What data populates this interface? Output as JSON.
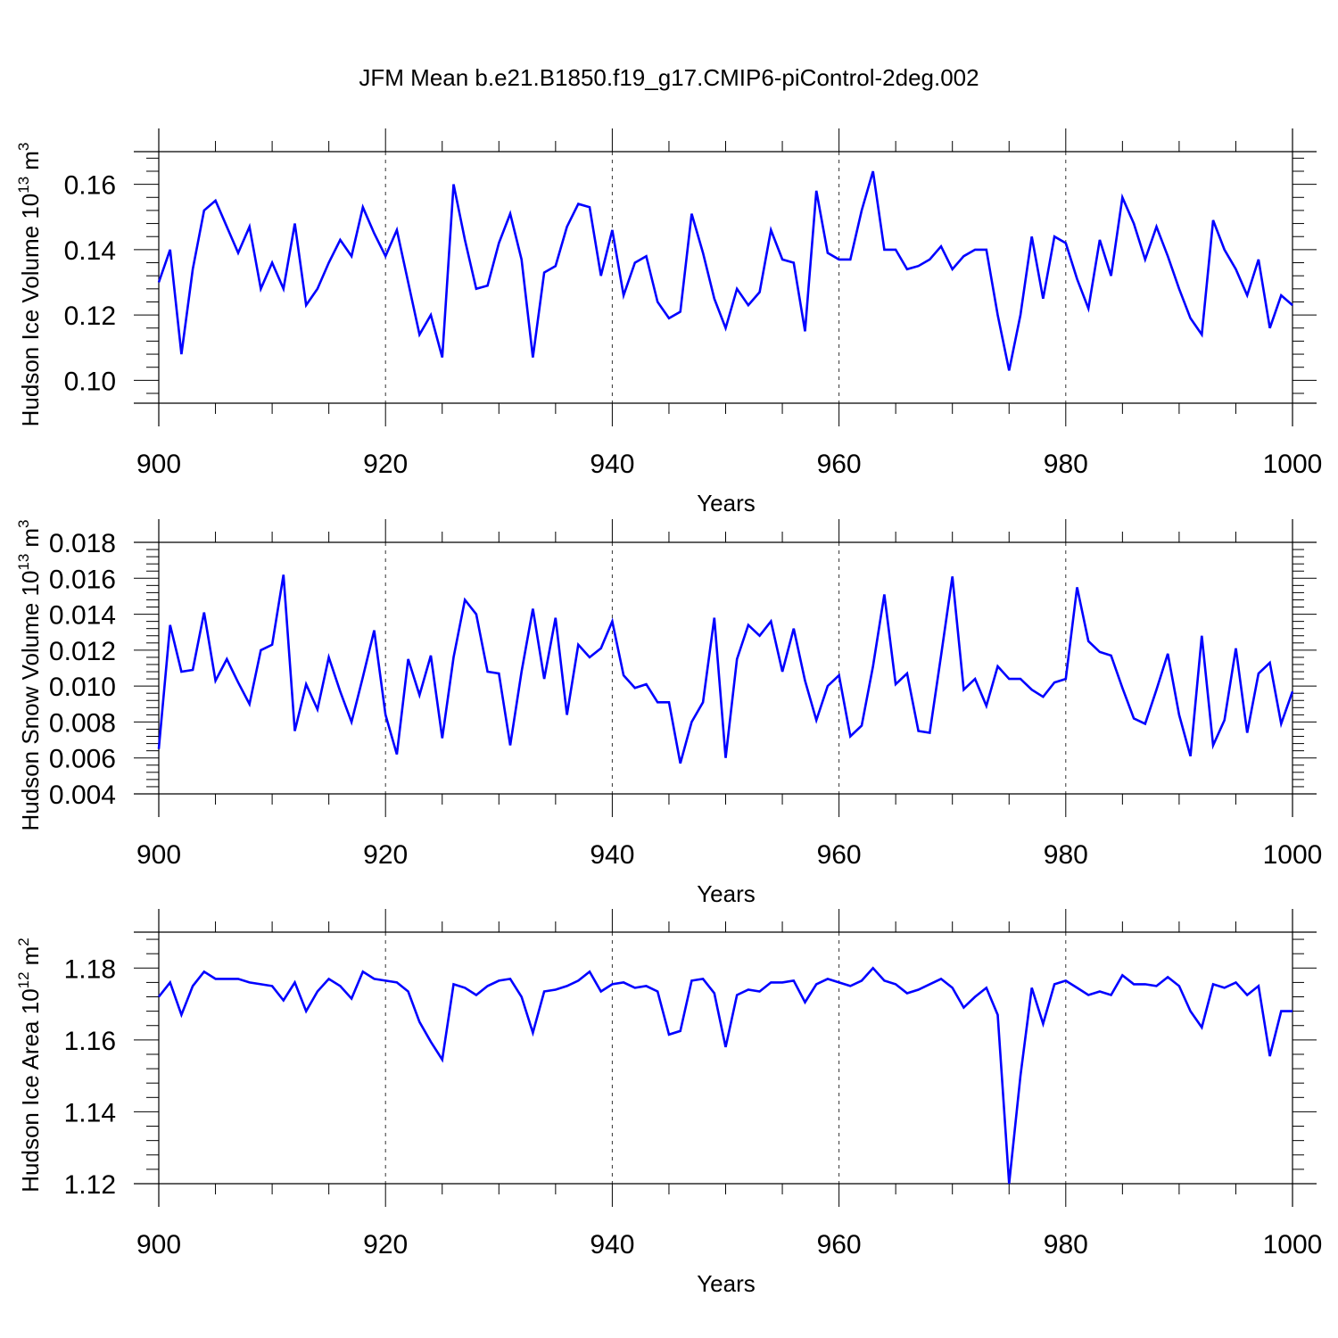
{
  "figure": {
    "title": "JFM Mean b.e21.B1850.f19_g17.CMIP6-piControl-2deg.002"
  },
  "chart_data": [
    {
      "type": "line",
      "title": "",
      "xlabel": "Years",
      "ylabel_main": "Hudson Ice Volume 10",
      "ylabel_exp": "13",
      "ylabel_unit": "m",
      "ylabel_unit_exp": "3",
      "xlim": [
        900,
        1000
      ],
      "ylim": [
        0.093,
        0.17
      ],
      "xticks": [
        900,
        920,
        940,
        960,
        980,
        1000
      ],
      "xtick_labels": [
        "900",
        "920",
        "940",
        "960",
        "980",
        "1000"
      ],
      "yticks": [
        0.1,
        0.12,
        0.14,
        0.16
      ],
      "ytick_labels": [
        "0.10",
        "0.12",
        "0.14",
        "0.16"
      ],
      "grid": "x-dashed",
      "line_color": "#0000ff",
      "start_year": 900,
      "series": [
        {
          "name": "Hudson Ice Volume",
          "values": [
            0.13,
            0.14,
            0.108,
            0.134,
            0.152,
            0.155,
            0.147,
            0.139,
            0.147,
            0.128,
            0.136,
            0.128,
            0.148,
            0.123,
            0.128,
            0.136,
            0.143,
            0.138,
            0.153,
            0.145,
            0.138,
            0.146,
            0.13,
            0.114,
            0.12,
            0.107,
            0.16,
            0.143,
            0.128,
            0.129,
            0.142,
            0.151,
            0.137,
            0.107,
            0.133,
            0.135,
            0.147,
            0.154,
            0.153,
            0.132,
            0.146,
            0.126,
            0.136,
            0.138,
            0.124,
            0.119,
            0.121,
            0.151,
            0.139,
            0.125,
            0.116,
            0.128,
            0.123,
            0.127,
            0.146,
            0.137,
            0.136,
            0.115,
            0.158,
            0.139,
            0.137,
            0.137,
            0.152,
            0.164,
            0.14,
            0.14,
            0.134,
            0.135,
            0.137,
            0.141,
            0.134,
            0.138,
            0.14,
            0.14,
            0.12,
            0.103,
            0.12,
            0.144,
            0.125,
            0.144,
            0.142,
            0.131,
            0.122,
            0.143,
            0.132,
            0.156,
            0.148,
            0.137,
            0.147,
            0.138,
            0.128,
            0.119,
            0.114,
            0.149,
            0.14,
            0.134,
            0.126,
            0.137,
            0.116,
            0.126,
            0.123
          ]
        }
      ]
    },
    {
      "type": "line",
      "title": "",
      "xlabel": "Years",
      "ylabel_main": "Hudson Snow Volume 10",
      "ylabel_exp": "13",
      "ylabel_unit": "m",
      "ylabel_unit_exp": "3",
      "xlim": [
        900,
        1000
      ],
      "ylim": [
        0.004,
        0.018
      ],
      "xticks": [
        900,
        920,
        940,
        960,
        980,
        1000
      ],
      "xtick_labels": [
        "900",
        "920",
        "940",
        "960",
        "980",
        "1000"
      ],
      "yticks": [
        0.004,
        0.006,
        0.008,
        0.01,
        0.012,
        0.014,
        0.016,
        0.018
      ],
      "ytick_labels": [
        "0.004",
        "0.006",
        "0.008",
        "0.010",
        "0.012",
        "0.014",
        "0.016",
        "0.018"
      ],
      "grid": "x-dashed",
      "line_color": "#0000ff",
      "start_year": 900,
      "series": [
        {
          "name": "Hudson Snow Volume",
          "values": [
            0.0065,
            0.0134,
            0.0108,
            0.0109,
            0.0141,
            0.0103,
            0.0115,
            0.0102,
            0.009,
            0.012,
            0.0123,
            0.0162,
            0.0075,
            0.0101,
            0.0087,
            0.0116,
            0.0097,
            0.008,
            0.0105,
            0.0131,
            0.0084,
            0.0062,
            0.0115,
            0.0095,
            0.0117,
            0.0071,
            0.0116,
            0.0148,
            0.014,
            0.0108,
            0.0107,
            0.0067,
            0.0108,
            0.0143,
            0.0104,
            0.0138,
            0.0084,
            0.0123,
            0.0116,
            0.0121,
            0.0136,
            0.0106,
            0.0099,
            0.0101,
            0.0091,
            0.0091,
            0.0057,
            0.008,
            0.0091,
            0.0138,
            0.006,
            0.0115,
            0.0134,
            0.0128,
            0.0136,
            0.0108,
            0.0132,
            0.0103,
            0.0081,
            0.01,
            0.0106,
            0.0072,
            0.0078,
            0.0111,
            0.0151,
            0.0101,
            0.0107,
            0.0075,
            0.0074,
            0.0117,
            0.0161,
            0.0098,
            0.0104,
            0.0089,
            0.0111,
            0.0104,
            0.0104,
            0.0098,
            0.0094,
            0.0102,
            0.0104,
            0.0155,
            0.0125,
            0.0119,
            0.0117,
            0.0099,
            0.0082,
            0.0079,
            0.0098,
            0.0118,
            0.0084,
            0.0061,
            0.0128,
            0.0067,
            0.0081,
            0.0121,
            0.0074,
            0.0107,
            0.0113,
            0.0079,
            0.0097
          ]
        }
      ]
    },
    {
      "type": "line",
      "title": "",
      "xlabel": "Years",
      "ylabel_main": "Hudson Ice Area 10",
      "ylabel_exp": "12",
      "ylabel_unit": "m",
      "ylabel_unit_exp": "2",
      "xlim": [
        900,
        1000
      ],
      "ylim": [
        1.12,
        1.19
      ],
      "xticks": [
        900,
        920,
        940,
        960,
        980,
        1000
      ],
      "xtick_labels": [
        "900",
        "920",
        "940",
        "960",
        "980",
        "1000"
      ],
      "yticks": [
        1.12,
        1.14,
        1.16,
        1.18
      ],
      "ytick_labels": [
        "1.12",
        "1.14",
        "1.16",
        "1.18"
      ],
      "grid": "x-dashed",
      "line_color": "#0000ff",
      "start_year": 900,
      "series": [
        {
          "name": "Hudson Ice Area",
          "values": [
            1.172,
            1.176,
            1.167,
            1.175,
            1.179,
            1.177,
            1.177,
            1.177,
            1.176,
            1.1755,
            1.175,
            1.171,
            1.176,
            1.168,
            1.1735,
            1.177,
            1.175,
            1.1715,
            1.179,
            1.177,
            1.1765,
            1.176,
            1.1735,
            1.165,
            1.1595,
            1.1545,
            1.1755,
            1.1745,
            1.1725,
            1.175,
            1.1765,
            1.177,
            1.172,
            1.162,
            1.1735,
            1.174,
            1.175,
            1.1765,
            1.179,
            1.1735,
            1.1755,
            1.176,
            1.1745,
            1.175,
            1.1735,
            1.1615,
            1.1625,
            1.1765,
            1.177,
            1.173,
            1.158,
            1.1725,
            1.174,
            1.1735,
            1.176,
            1.176,
            1.1765,
            1.1705,
            1.1755,
            1.177,
            1.176,
            1.175,
            1.1765,
            1.18,
            1.1765,
            1.1755,
            1.173,
            1.174,
            1.1755,
            1.177,
            1.1745,
            1.169,
            1.172,
            1.1745,
            1.167,
            1.12,
            1.15,
            1.1745,
            1.1645,
            1.1755,
            1.1765,
            1.1745,
            1.1725,
            1.1735,
            1.1725,
            1.178,
            1.1755,
            1.1755,
            1.175,
            1.1775,
            1.175,
            1.168,
            1.1635,
            1.1755,
            1.1745,
            1.176,
            1.1725,
            1.175,
            1.1555,
            1.168,
            1.168
          ]
        }
      ]
    }
  ]
}
